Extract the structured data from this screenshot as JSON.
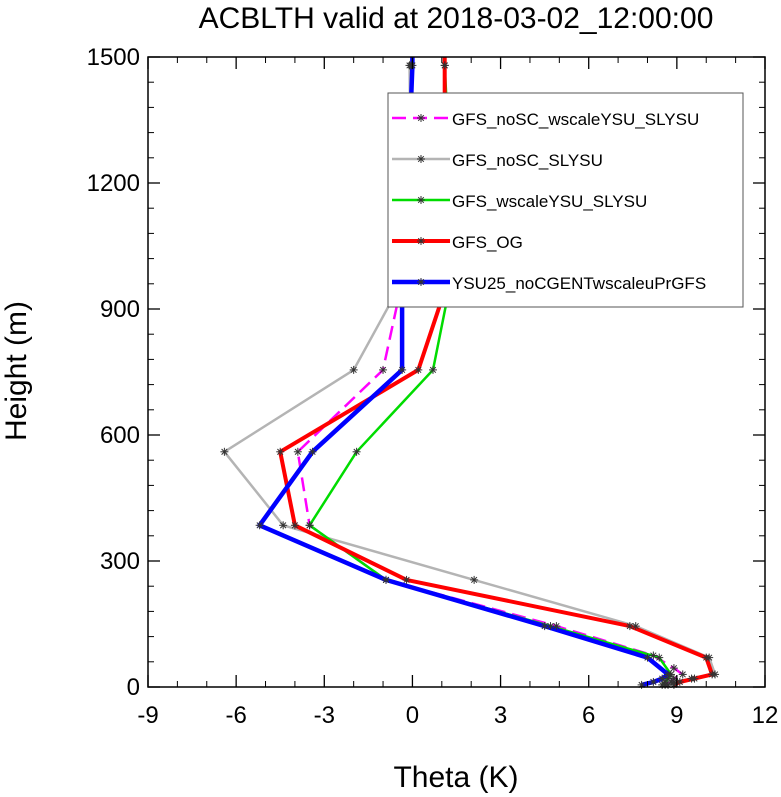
{
  "chart_data": {
    "type": "line",
    "title": "ACBLTH valid at 2018-03-02_12:00:00",
    "xlabel": "Theta (K)",
    "ylabel": "Height (m)",
    "xlim": [
      -9,
      12
    ],
    "ylim": [
      0,
      1500
    ],
    "xticks": [
      -9,
      -6,
      -3,
      0,
      3,
      6,
      9,
      12
    ],
    "yticks": [
      0,
      300,
      600,
      900,
      1200,
      1500
    ],
    "xtick_labels": [
      "-9",
      "-6",
      "-3",
      "0",
      "3",
      "6",
      "9",
      "12"
    ],
    "ytick_labels": [
      "0",
      "300",
      "600",
      "900",
      "1200",
      "1500"
    ],
    "legend_position": "top-right",
    "grid": false,
    "series": [
      {
        "name": "GFS_noSC_wscaleYSU_SLYSU",
        "color": "#ff00ff",
        "dash": true,
        "width": 2.5,
        "points": [
          [
            8.6,
            5
          ],
          [
            8.8,
            12
          ],
          [
            8.9,
            20
          ],
          [
            9.2,
            30
          ],
          [
            8.9,
            45
          ],
          [
            8.2,
            75
          ],
          [
            4.9,
            145
          ],
          [
            -0.9,
            255
          ],
          [
            -3.5,
            385
          ],
          [
            -3.9,
            560
          ],
          [
            -1.0,
            755
          ],
          [
            -0.35,
            965
          ],
          [
            -0.05,
            1205
          ],
          [
            -0.05,
            1480
          ],
          [
            0,
            1500
          ]
        ]
      },
      {
        "name": "GFS_noSC_SLYSU",
        "color": "#b4b4b4",
        "dash": false,
        "width": 2.5,
        "points": [
          [
            8.7,
            5
          ],
          [
            8.9,
            12
          ],
          [
            9.5,
            20
          ],
          [
            10.3,
            30
          ],
          [
            10.1,
            70
          ],
          [
            7.6,
            145
          ],
          [
            2.1,
            255
          ],
          [
            -4.4,
            385
          ],
          [
            -6.4,
            560
          ],
          [
            -2.0,
            755
          ],
          [
            -0.35,
            965
          ],
          [
            -0.05,
            1205
          ],
          [
            -0.1,
            1480
          ],
          [
            0,
            1500
          ]
        ]
      },
      {
        "name": "GFS_wscaleYSU_SLYSU",
        "color": "#00dc00",
        "dash": false,
        "width": 2.5,
        "points": [
          [
            8.5,
            5
          ],
          [
            8.6,
            12
          ],
          [
            8.7,
            20
          ],
          [
            8.8,
            30
          ],
          [
            8.4,
            70
          ],
          [
            4.7,
            145
          ],
          [
            -0.9,
            255
          ],
          [
            -3.5,
            385
          ],
          [
            -1.9,
            560
          ],
          [
            0.7,
            755
          ],
          [
            1.3,
            965
          ],
          [
            1.3,
            1205
          ],
          [
            1.1,
            1480
          ],
          [
            1.1,
            1500
          ]
        ]
      },
      {
        "name": "GFS_OG",
        "color": "#ff0000",
        "dash": false,
        "width": 4,
        "points": [
          [
            8.9,
            5
          ],
          [
            9.1,
            12
          ],
          [
            9.6,
            20
          ],
          [
            10.2,
            30
          ],
          [
            10.0,
            70
          ],
          [
            7.4,
            145
          ],
          [
            -0.2,
            255
          ],
          [
            -4.0,
            385
          ],
          [
            -4.5,
            560
          ],
          [
            0.2,
            755
          ],
          [
            1.2,
            965
          ],
          [
            1.1,
            1205
          ],
          [
            1.1,
            1480
          ],
          [
            1.1,
            1500
          ]
        ]
      },
      {
        "name": "YSU25_noCGENTwscaleuPrGFS",
        "color": "#0000ff",
        "dash": false,
        "width": 4.5,
        "points": [
          [
            7.8,
            5
          ],
          [
            8.2,
            12
          ],
          [
            8.5,
            20
          ],
          [
            8.7,
            30
          ],
          [
            8.0,
            70
          ],
          [
            4.5,
            145
          ],
          [
            -0.9,
            255
          ],
          [
            -5.2,
            385
          ],
          [
            -3.4,
            560
          ],
          [
            -0.35,
            755
          ],
          [
            -0.35,
            965
          ],
          [
            -0.15,
            1205
          ],
          [
            0,
            1480
          ],
          [
            0,
            1500
          ]
        ]
      }
    ]
  }
}
